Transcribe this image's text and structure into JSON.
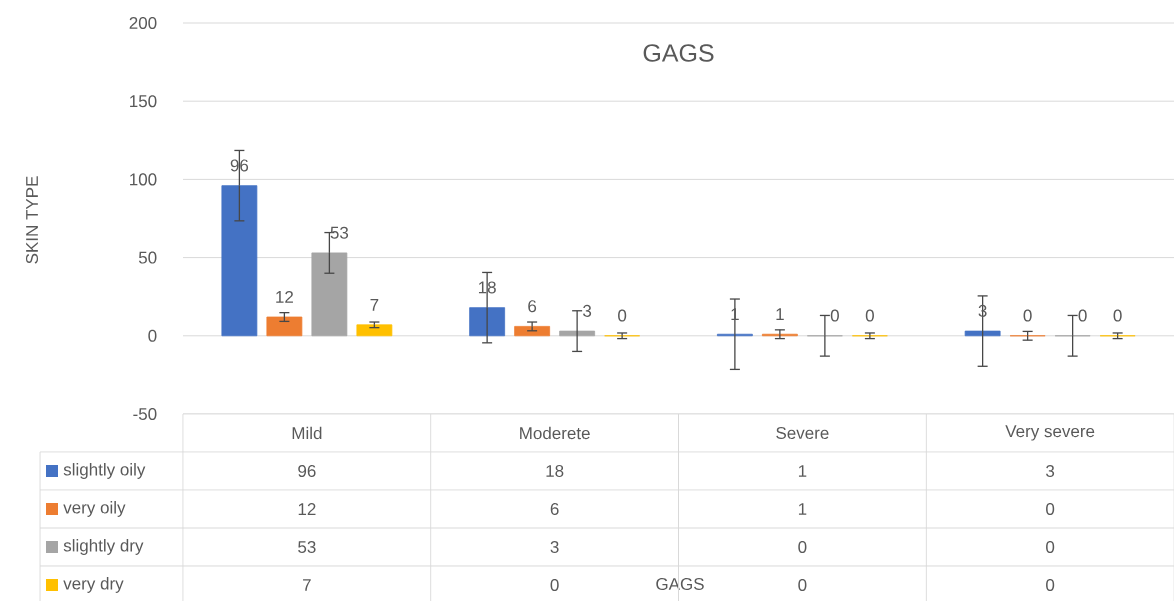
{
  "chart_data": [
    {
      "type": "bar",
      "title": "GAGS",
      "xlabel": "GAGS",
      "ylabel": "SKIN TYPE",
      "categories": [
        "Mild",
        "Moderete",
        "Severe",
        "Very severe"
      ],
      "series": [
        {
          "name": "slightly oily",
          "color": "#4472c4",
          "values": [
            96,
            18,
            1,
            3
          ],
          "errors": [
            22.5,
            22.5,
            22.5,
            22.5
          ],
          "value_labels": [
            "96",
            "18",
            "1",
            "3"
          ]
        },
        {
          "name": "very oily",
          "color": "#ed7d31",
          "values": [
            12,
            6,
            1,
            0
          ],
          "errors": [
            2.8,
            2.8,
            2.8,
            2.8
          ],
          "value_labels": [
            "12",
            "6",
            "1",
            "0"
          ]
        },
        {
          "name": "slightly dry",
          "color": "#a5a5a5",
          "values": [
            53,
            3,
            0,
            0
          ],
          "errors": [
            13,
            13,
            13,
            13
          ],
          "value_labels": [
            "53",
            "3",
            "0",
            "0"
          ]
        },
        {
          "name": "very dry",
          "color": "#ffc000",
          "values": [
            7,
            0,
            0,
            0
          ],
          "errors": [
            1.8,
            1.8,
            1.8,
            1.8
          ],
          "value_labels": [
            "7",
            "0",
            "0",
            "0"
          ]
        }
      ],
      "ylim": [
        -50,
        200
      ],
      "yticks": [
        -50,
        0,
        50,
        100,
        150,
        200
      ],
      "grid": "y",
      "legend": "bottom"
    },
    {
      "type": "other",
      "annotations": [
        "96",
        "18",
        "1",
        "3",
        "12",
        "6",
        "1",
        "0",
        "53",
        "3",
        "0",
        "0",
        "7",
        "0",
        "0",
        "0"
      ]
    }
  ]
}
